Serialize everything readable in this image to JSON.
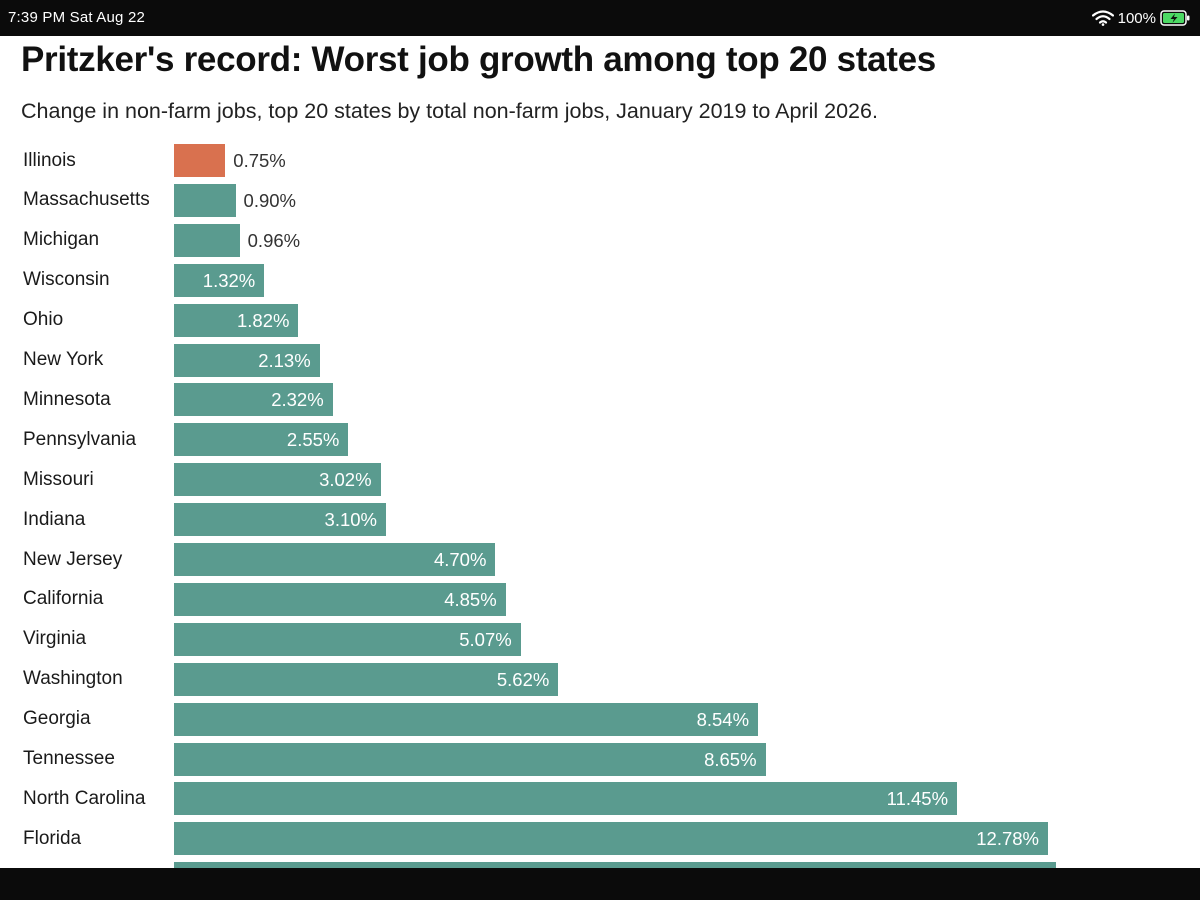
{
  "status_bar": {
    "time": "7:39 PM  Sat Aug 22",
    "battery": "100%"
  },
  "chart_data": {
    "type": "bar",
    "orientation": "horizontal",
    "title": "Pritzker's record: Worst job growth among top 20 states",
    "subtitle": "Change in non-farm jobs, top 20 states by total non-farm jobs, January 2019 to April 2026.",
    "xlabel": "",
    "ylabel": "",
    "xlim": [
      0,
      12.78
    ],
    "grid": false,
    "colors": {
      "highlight": "#d9714f",
      "default": "#5a9b8f"
    },
    "highlight": "Illinois",
    "categories": [
      "Illinois",
      "Massachusetts",
      "Michigan",
      "Wisconsin",
      "Ohio",
      "New York",
      "Minnesota",
      "Pennsylvania",
      "Missouri",
      "Indiana",
      "New Jersey",
      "California",
      "Virginia",
      "Washington",
      "Georgia",
      "Tennessee",
      "North Carolina",
      "Florida"
    ],
    "values": [
      0.75,
      0.9,
      0.96,
      1.32,
      1.82,
      2.13,
      2.32,
      2.55,
      3.02,
      3.1,
      4.7,
      4.85,
      5.07,
      5.62,
      8.54,
      8.65,
      11.45,
      12.78
    ],
    "value_labels": [
      "0.75%",
      "0.90%",
      "0.96%",
      "1.32%",
      "1.82%",
      "2.13%",
      "2.32%",
      "2.55%",
      "3.02%",
      "3.10%",
      "4.70%",
      "4.85%",
      "5.07%",
      "5.62%",
      "8.54%",
      "8.65%",
      "11.45%",
      "12.78%"
    ],
    "partially_visible_next_value": 12.9
  }
}
